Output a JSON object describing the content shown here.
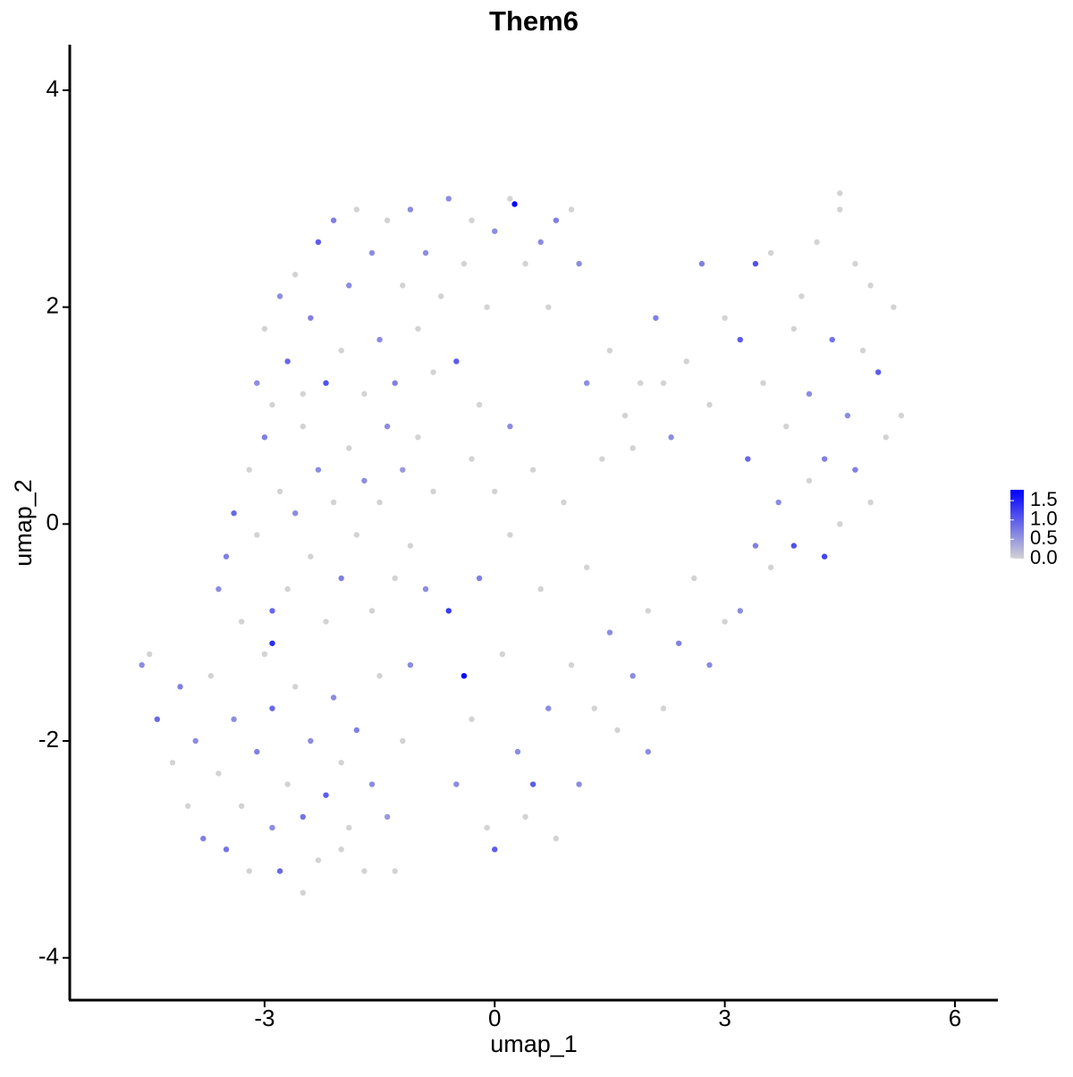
{
  "chart_data": {
    "type": "scatter",
    "title": "Them6",
    "x_label": "umap_1",
    "y_label": "umap_2",
    "xlim": [
      -5.54,
      6.56
    ],
    "ylim": [
      -4.39,
      4.42
    ],
    "xticks": [
      -3,
      0,
      3,
      6
    ],
    "yticks": [
      -4,
      -2,
      0,
      2,
      4
    ],
    "low_color": "#d3d3d3",
    "high_color": "#0000ff",
    "colorlim": [
      0,
      1.78
    ],
    "colorbar_ticks": [
      {
        "value": 0,
        "label": "0.0"
      },
      0.5,
      {
        "value": 1,
        "label": "1.0"
      },
      1.5
    ],
    "x": [
      -4.6,
      -4.5,
      -4.4,
      -4.2,
      -4.1,
      -4.0,
      -3.9,
      -3.8,
      -3.7,
      -3.6,
      -3.5,
      -3.4,
      -3.3,
      -3.2,
      -3.1,
      -3.0,
      -2.9,
      -2.9,
      -2.8,
      -2.7,
      -2.6,
      -2.5,
      -2.5,
      -2.4,
      -2.3,
      -2.2,
      -2.1,
      -2.0,
      -2.0,
      -1.9,
      -1.8,
      -1.7,
      -1.6,
      -1.5,
      -1.4,
      -1.3,
      -1.2,
      -1.1,
      -3.6,
      -3.5,
      -3.4,
      -3.3,
      -3.2,
      -3.1,
      -3.0,
      -2.9,
      -2.9,
      -2.8,
      -2.7,
      -2.6,
      -2.5,
      -2.4,
      -2.3,
      -2.2,
      -2.1,
      -2.0,
      -1.9,
      -1.8,
      -1.7,
      -1.6,
      -1.5,
      -1.4,
      -1.3,
      -1.2,
      -1.1,
      -1.0,
      -0.9,
      -0.8,
      -3.1,
      -3.0,
      -2.9,
      -2.8,
      -2.7,
      -2.6,
      -2.5,
      -2.4,
      -2.3,
      -2.2,
      -2.1,
      -2.0,
      -1.9,
      -1.8,
      -1.7,
      -1.6,
      -1.5,
      -1.4,
      -1.3,
      -1.2,
      -1.1,
      -1.0,
      -0.9,
      -0.8,
      -0.7,
      -0.6,
      -0.5,
      -0.4,
      -0.3,
      -0.2,
      -0.1,
      0.0,
      0.2,
      0.26,
      0.4,
      0.6,
      0.7,
      0.8,
      1.0,
      1.1,
      -0.6,
      -0.4,
      -0.5,
      -0.3,
      -0.2,
      -0.1,
      0.0,
      0.1,
      0.2,
      0.3,
      0.4,
      0.5,
      0.6,
      0.7,
      0.8,
      0.9,
      1.0,
      1.1,
      1.2,
      1.3,
      1.4,
      1.5,
      0.5,
      0.2,
      0.0,
      -0.3,
      1.2,
      1.5,
      1.7,
      1.9,
      2.1,
      2.3,
      2.5,
      2.7,
      2.8,
      3.0,
      3.2,
      3.3,
      3.4,
      3.5,
      3.6,
      3.8,
      3.9,
      4.0,
      4.1,
      4.2,
      4.3,
      4.4,
      4.5,
      4.6,
      4.7,
      4.8,
      4.9,
      5.0,
      5.1,
      5.2,
      5.3,
      4.5,
      2.2,
      1.8,
      1.6,
      1.8,
      2.0,
      2.2,
      2.4,
      2.6,
      2.8,
      3.0,
      3.2,
      3.4,
      3.6,
      3.7,
      3.9,
      4.1,
      4.3,
      4.5,
      4.7,
      4.9,
      2.0
    ],
    "y": [
      -1.3,
      -1.2,
      -1.8,
      -2.2,
      -1.5,
      -2.6,
      -2.0,
      -2.9,
      -1.4,
      -2.3,
      -3.0,
      -1.8,
      -2.6,
      -3.2,
      -2.1,
      -1.2,
      -2.8,
      -1.7,
      -3.2,
      -2.4,
      -1.5,
      -2.7,
      -3.4,
      -2.0,
      -3.1,
      -2.5,
      -1.6,
      -3.0,
      -2.2,
      -2.8,
      -1.9,
      -3.2,
      -2.4,
      -1.4,
      -2.7,
      -3.2,
      -2.0,
      -1.3,
      -0.6,
      -0.3,
      0.1,
      -0.9,
      0.5,
      -0.1,
      0.8,
      -0.8,
      -1.1,
      0.3,
      -0.6,
      0.1,
      0.9,
      -0.3,
      0.5,
      -0.9,
      0.2,
      -0.5,
      0.7,
      -0.1,
      0.4,
      -0.8,
      0.2,
      0.9,
      -0.5,
      0.5,
      -0.2,
      0.8,
      -0.6,
      0.3,
      1.3,
      1.8,
      1.1,
      2.1,
      1.5,
      2.3,
      1.2,
      1.9,
      2.6,
      1.3,
      2.8,
      1.6,
      2.2,
      2.9,
      1.2,
      2.5,
      1.7,
      2.8,
      1.3,
      2.2,
      2.9,
      1.8,
      2.5,
      1.4,
      2.1,
      3.0,
      1.5,
      2.4,
      2.8,
      1.1,
      2.0,
      2.7,
      3.0,
      2.95,
      2.4,
      2.6,
      2.0,
      2.8,
      2.9,
      2.4,
      -0.8,
      -1.4,
      -2.4,
      -1.8,
      -0.5,
      -2.8,
      -3.0,
      -1.2,
      -0.1,
      -2.1,
      -2.7,
      -2.4,
      -0.6,
      -1.7,
      -2.9,
      0.2,
      -1.3,
      -2.4,
      -0.4,
      -1.7,
      0.6,
      -1.0,
      0.5,
      0.9,
      0.3,
      0.6,
      1.3,
      1.6,
      1.0,
      1.3,
      1.9,
      0.8,
      1.5,
      2.4,
      1.1,
      1.9,
      1.7,
      0.6,
      2.4,
      1.3,
      2.5,
      0.9,
      1.8,
      2.1,
      1.2,
      2.6,
      0.6,
      1.7,
      2.9,
      1.0,
      2.4,
      1.6,
      2.2,
      1.4,
      0.8,
      2.0,
      1.0,
      3.05,
      1.3,
      0.7,
      -1.9,
      -1.4,
      -0.8,
      -1.7,
      -1.1,
      -0.5,
      -1.3,
      -0.9,
      -0.8,
      -0.2,
      -0.4,
      0.2,
      -0.2,
      0.4,
      -0.3,
      0.0,
      0.5,
      0.2,
      -2.1
    ],
    "values": [
      0.6,
      0,
      0.9,
      0,
      0.7,
      0,
      0.6,
      0.7,
      0,
      0,
      0.8,
      0.6,
      0,
      0,
      0.7,
      0,
      0.6,
      0.9,
      0.9,
      0,
      0,
      0.8,
      0,
      0.6,
      0,
      1.0,
      0.6,
      0,
      0,
      0,
      0.7,
      0,
      0.6,
      0,
      0.5,
      0,
      0,
      0.6,
      0.6,
      0.7,
      0.9,
      0,
      0,
      0,
      0.7,
      0.9,
      1.4,
      0,
      0,
      0.6,
      0,
      0,
      0.6,
      0,
      0,
      0.7,
      0,
      0,
      0.6,
      0,
      0,
      0.6,
      0,
      0.5,
      0,
      0,
      0.6,
      0,
      0.6,
      0,
      0,
      0.6,
      0.9,
      0,
      0,
      0.7,
      1.0,
      1.1,
      0.7,
      0,
      0.6,
      0,
      0,
      0.6,
      0.6,
      0,
      0.7,
      0,
      0.6,
      0,
      0.6,
      0,
      0,
      0.6,
      1.0,
      0,
      0,
      0,
      0,
      0.6,
      0,
      1.7,
      0,
      0.6,
      0,
      0.7,
      0,
      0.6,
      1.3,
      1.7,
      0.6,
      0,
      0.7,
      0,
      1.0,
      0,
      0,
      0.6,
      0,
      1.0,
      0,
      0.6,
      0,
      0,
      0,
      0.6,
      0,
      0,
      0,
      0.6,
      0,
      0.6,
      0,
      0,
      0.6,
      0,
      0,
      0,
      0.7,
      0.6,
      0,
      0.7,
      0,
      0,
      1.0,
      0.9,
      1.1,
      0,
      0,
      0,
      0,
      0,
      0.6,
      0,
      0.7,
      0.8,
      0,
      0.6,
      0,
      0,
      0,
      1.0,
      0,
      0,
      0,
      0,
      0,
      0,
      0,
      0.6,
      0,
      0,
      0.7,
      0,
      0.6,
      0,
      0.6,
      0.7,
      0,
      0.6,
      1.1,
      0,
      1.2,
      0,
      0.7,
      0,
      0.6
    ]
  }
}
